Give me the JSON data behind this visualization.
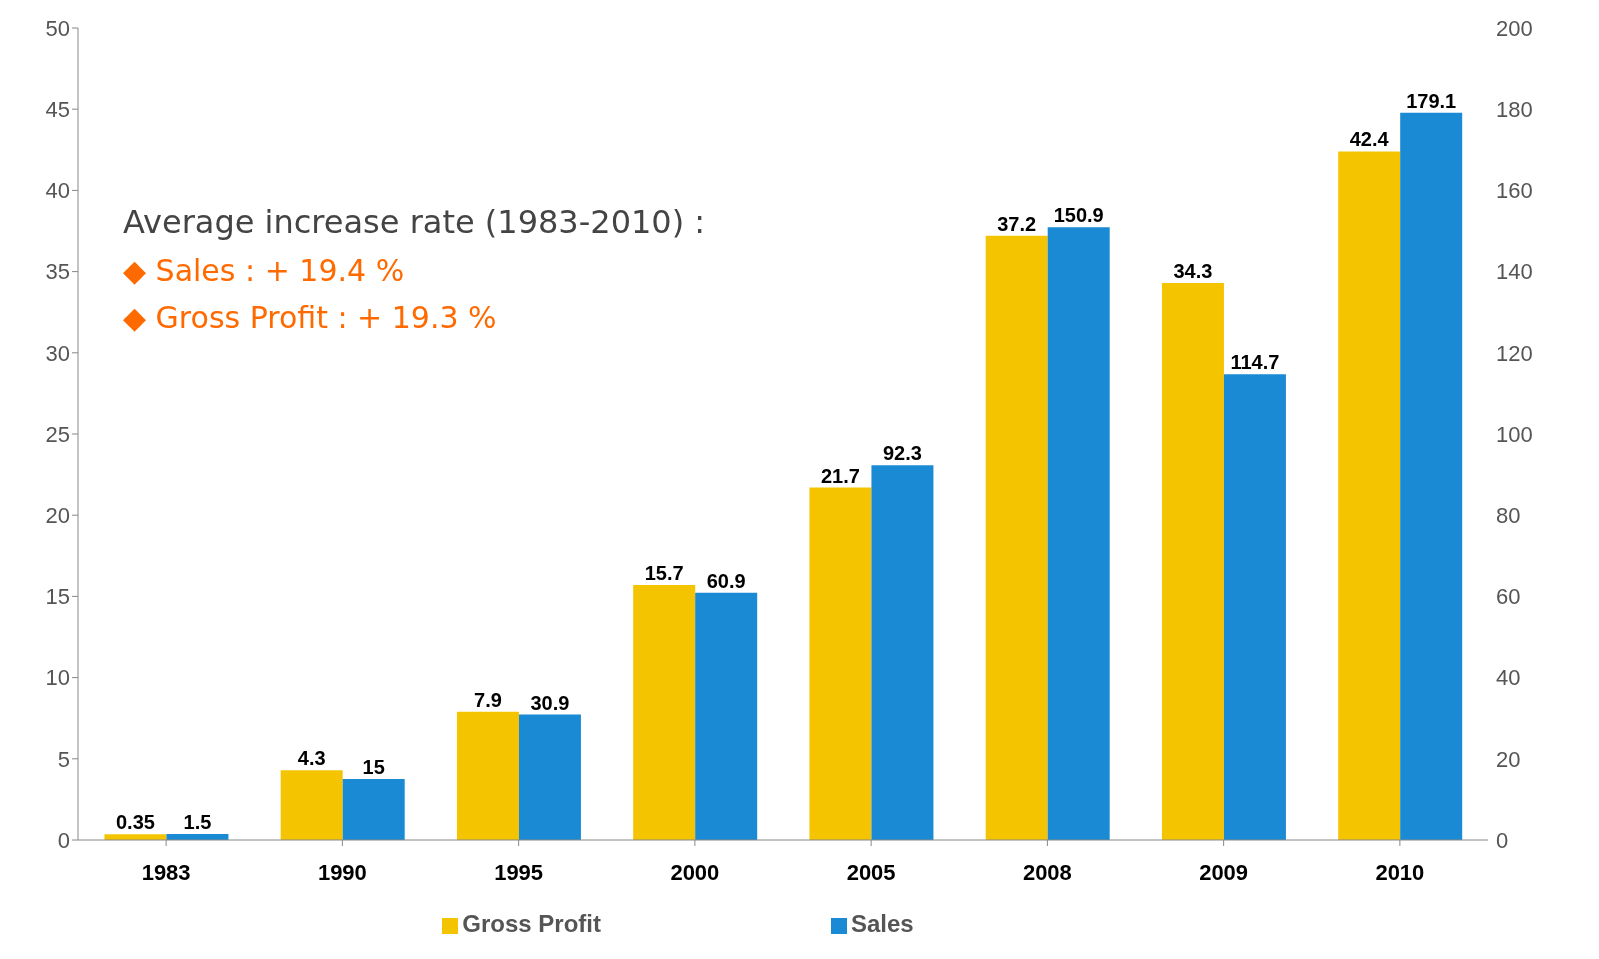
{
  "chart_data": {
    "type": "bar",
    "categories": [
      "1983",
      "1990",
      "1995",
      "2000",
      "2005",
      "2008",
      "2009",
      "2010"
    ],
    "series": [
      {
        "name": "Gross Profit",
        "color": "#f5c400",
        "values": [
          0.35,
          4.3,
          7.9,
          15.7,
          21.7,
          37.2,
          34.3,
          42.4
        ]
      },
      {
        "name": "Sales",
        "color": "#1a8ad4",
        "axis": "y2",
        "values": [
          1.5,
          15,
          30.9,
          60.9,
          92.3,
          150.9,
          114.7,
          179.1
        ]
      }
    ],
    "ylim": [
      0,
      50
    ],
    "yticks": [
      0,
      5,
      10,
      15,
      20,
      25,
      30,
      35,
      40,
      45,
      50
    ],
    "y2lim": [
      0,
      200
    ],
    "y2ticks": [
      0,
      20,
      40,
      60,
      80,
      100,
      120,
      140,
      160,
      180,
      200
    ],
    "data_labels": true,
    "grid": false,
    "legend": "bottom",
    "annotations": [
      "Average increase rate (1983-2010) :",
      "◆ Sales : + 19.4 %",
      "◆ Gross Profit : + 19.3 %"
    ]
  }
}
